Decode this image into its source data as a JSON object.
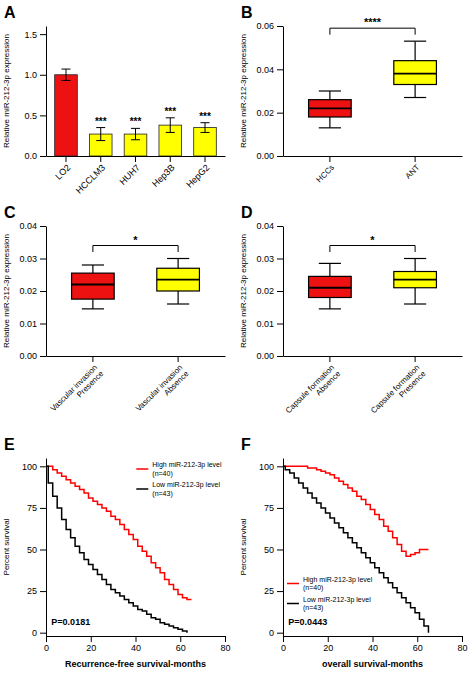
{
  "chart_data": [
    {
      "type": "bar",
      "title": "A",
      "categories": [
        "LO2",
        "HCCLM3",
        "HUH7",
        "Hep3B",
        "HepG2"
      ],
      "values": [
        1.0,
        0.27,
        0.27,
        0.38,
        0.35
      ],
      "errors": [
        0.07,
        0.08,
        0.07,
        0.09,
        0.06
      ],
      "colors": [
        "#ee1111",
        "#ffff00",
        "#ffff00",
        "#ffff00",
        "#ffff00"
      ],
      "annotations": [
        {
          "category": "HCCLM3",
          "text": "***"
        },
        {
          "category": "HUH7",
          "text": "***"
        },
        {
          "category": "Hep3B",
          "text": "***"
        },
        {
          "category": "HepG2",
          "text": "***"
        }
      ],
      "ylabel": "Relative miR-212-3p expression",
      "ylim": [
        0,
        1.6
      ],
      "yticks": [
        {
          "value": 0,
          "label": "0.0"
        },
        0.5,
        {
          "value": 1,
          "label": "1.0"
        },
        1.5
      ],
      "grid": false
    },
    {
      "type": "box",
      "title": "B",
      "categories": [
        "HCCs",
        "ANT"
      ],
      "colors": [
        "#ee1111",
        "#ffff00"
      ],
      "medians": [
        0.022,
        0.038
      ],
      "q1": [
        0.018,
        0.033
      ],
      "q3": [
        0.026,
        0.044
      ],
      "whisker_low": [
        0.013,
        0.027
      ],
      "whisker_high": [
        0.03,
        0.053
      ],
      "annotations": [
        {
          "text": "****"
        }
      ],
      "ylabel": "Relative miR-212-3p expression",
      "ylim": [
        0,
        0.06
      ],
      "yticks": [
        {
          "value": 0,
          "label": "0.00"
        },
        0.02,
        0.04,
        0.06
      ],
      "grid": false
    },
    {
      "type": "box",
      "title": "C",
      "categories": [
        "Vascular invasion\nPresence",
        "Vascular invasion\nAbsence"
      ],
      "colors": [
        "#ee1111",
        "#ffff00"
      ],
      "medians": [
        0.022,
        0.0235
      ],
      "q1": [
        0.0175,
        0.02
      ],
      "q3": [
        0.0255,
        0.027
      ],
      "whisker_low": [
        0.0145,
        0.016
      ],
      "whisker_high": [
        0.028,
        0.03
      ],
      "annotations": [
        {
          "text": "*"
        }
      ],
      "ylabel": "Relative miR-212-3p expression",
      "ylim": [
        0,
        0.04
      ],
      "yticks": [
        {
          "value": 0,
          "label": "0.00"
        },
        0.01,
        0.02,
        0.03,
        0.04
      ],
      "grid": false
    },
    {
      "type": "box",
      "title": "D",
      "categories": [
        "Capsule formation\nAbsence",
        "Capsule formation\nPresence"
      ],
      "colors": [
        "#ee1111",
        "#ffff00"
      ],
      "medians": [
        0.021,
        0.0235
      ],
      "q1": [
        0.018,
        0.021
      ],
      "q3": [
        0.0245,
        0.026
      ],
      "whisker_low": [
        0.0145,
        0.016
      ],
      "whisker_high": [
        0.0285,
        0.03
      ],
      "annotations": [
        {
          "text": "*"
        }
      ],
      "ylabel": "Relative miR-212-3p expression",
      "ylim": [
        0,
        0.04
      ],
      "yticks": [
        {
          "value": 0,
          "label": "0.00"
        },
        0.01,
        0.02,
        0.03,
        0.04
      ],
      "grid": false
    },
    {
      "type": "step",
      "title": "E",
      "xlabel": "Recurrence-free survival-months",
      "ylabel": "Percent survival",
      "xlim": [
        0,
        80
      ],
      "ylim": [
        -2,
        105
      ],
      "xticks": [
        0,
        20,
        40,
        60,
        80
      ],
      "yticks": [
        0,
        25,
        50,
        75,
        100
      ],
      "legend": "upper right",
      "annotations": [
        {
          "text": "P=0.0181"
        }
      ],
      "grid": false,
      "series": [
        {
          "name": "High miR-212-3p level\n(n=40)",
          "color": "red",
          "x": [
            0,
            1,
            3,
            5,
            7,
            9,
            11,
            13,
            15,
            17,
            19,
            21,
            23,
            25,
            27,
            29,
            31,
            33,
            35,
            37,
            39,
            41,
            43,
            45,
            47,
            49,
            51,
            53,
            55,
            57,
            59,
            61,
            63,
            65
          ],
          "values": [
            100,
            100,
            98,
            96,
            94,
            92,
            90,
            88,
            86,
            84,
            81,
            79,
            77,
            75,
            73,
            70,
            68,
            65,
            62,
            59,
            56,
            52,
            49,
            46,
            42,
            39,
            36,
            32,
            29,
            26,
            23,
            21,
            20,
            20
          ]
        },
        {
          "name": "Low miR-212-3p level\n(n=43)",
          "color": "black",
          "x": [
            0,
            1,
            3,
            5,
            7,
            9,
            11,
            13,
            15,
            17,
            19,
            21,
            23,
            25,
            27,
            29,
            31,
            33,
            35,
            37,
            39,
            41,
            43,
            45,
            47,
            49,
            51,
            53,
            55,
            57,
            59,
            61,
            63
          ],
          "values": [
            100,
            90,
            82,
            75,
            68,
            62,
            57,
            52,
            48,
            44,
            41,
            38,
            35,
            32,
            29,
            26,
            24,
            22,
            20,
            18,
            16,
            14,
            13,
            11,
            9,
            8,
            6,
            5,
            4,
            3,
            2,
            1,
            0
          ]
        }
      ]
    },
    {
      "type": "step",
      "title": "F",
      "xlabel": "overall survival-months",
      "ylabel": "Percent survival",
      "xlim": [
        0,
        80
      ],
      "ylim": [
        -2,
        105
      ],
      "xticks": [
        0,
        20,
        40,
        60,
        80
      ],
      "yticks": [
        0,
        25,
        50,
        75,
        100
      ],
      "legend": "lower left",
      "annotations": [
        {
          "text": "P=0.0443"
        }
      ],
      "grid": false,
      "series": [
        {
          "name": "High miR-212-3p level\n(n=40)",
          "color": "red",
          "x": [
            0,
            1,
            3,
            5,
            7,
            9,
            11,
            13,
            15,
            17,
            19,
            21,
            23,
            25,
            27,
            29,
            31,
            33,
            35,
            37,
            39,
            41,
            43,
            45,
            47,
            49,
            51,
            53,
            55,
            57,
            59,
            61,
            63,
            65
          ],
          "values": [
            100,
            100,
            100,
            100,
            100,
            100,
            99,
            99,
            98,
            97,
            96,
            95,
            93,
            91,
            89,
            87,
            85,
            82,
            80,
            77,
            74,
            71,
            68,
            64,
            61,
            57,
            53,
            49,
            46,
            47,
            48,
            50,
            50,
            50
          ]
        },
        {
          "name": "Low miR-212-3p level\n(n=43)",
          "color": "black",
          "x": [
            0,
            1,
            3,
            5,
            7,
            9,
            11,
            13,
            15,
            17,
            19,
            21,
            23,
            25,
            27,
            29,
            31,
            33,
            35,
            37,
            39,
            41,
            43,
            45,
            47,
            49,
            51,
            53,
            55,
            57,
            59,
            61,
            63,
            65
          ],
          "values": [
            100,
            98,
            96,
            93,
            90,
            87,
            84,
            81,
            78,
            75,
            72,
            69,
            66,
            63,
            60,
            57,
            54,
            51,
            48,
            45,
            42,
            39,
            36,
            33,
            30,
            27,
            24,
            21,
            18,
            15,
            12,
            8,
            4,
            0
          ]
        }
      ]
    }
  ]
}
